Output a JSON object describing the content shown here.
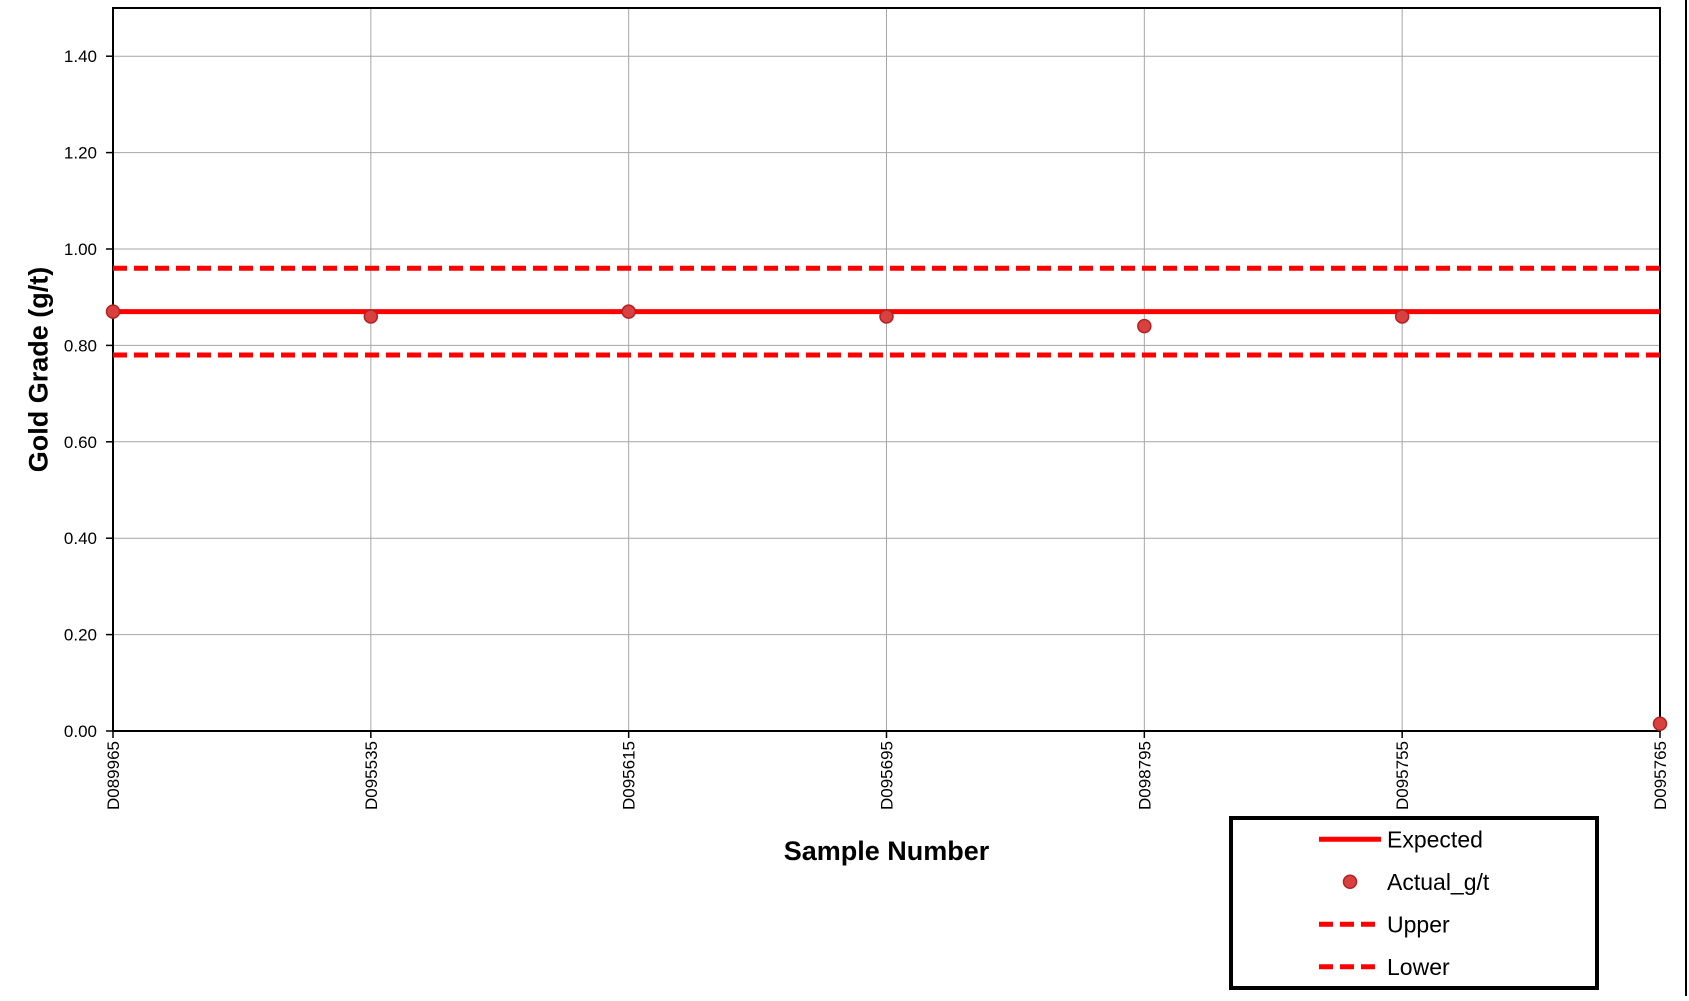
{
  "chart_data": {
    "type": "line",
    "title": "",
    "xlabel": "Sample Number",
    "ylabel": "Gold Grade (g/t)",
    "ylim": [
      0,
      1.5
    ],
    "yticks": [
      "0.00",
      "0.20",
      "0.40",
      "0.60",
      "0.80",
      "1.00",
      "1.20",
      "1.40"
    ],
    "categories": [
      "D089965",
      "D095535",
      "D095615",
      "D095695",
      "D098795",
      "D095755",
      "D095765"
    ],
    "grid": true,
    "legend_position": "bottom-right",
    "series": [
      {
        "name": "Expected",
        "style": "solid-line",
        "color": "#ff0000",
        "values": [
          0.87,
          0.87,
          0.87,
          0.87,
          0.87,
          0.87,
          0.87
        ]
      },
      {
        "name": "Actual_g/t",
        "style": "markers",
        "color": "#d94040",
        "values": [
          0.87,
          0.86,
          0.87,
          0.86,
          0.84,
          0.86,
          0.015
        ]
      },
      {
        "name": "Upper",
        "style": "dashed-line",
        "color": "#ff0000",
        "values": [
          0.96,
          0.96,
          0.96,
          0.96,
          0.96,
          0.96,
          0.96
        ]
      },
      {
        "name": "Lower",
        "style": "dashed-line",
        "color": "#ff0000",
        "values": [
          0.78,
          0.78,
          0.78,
          0.78,
          0.78,
          0.78,
          0.78
        ]
      }
    ]
  }
}
